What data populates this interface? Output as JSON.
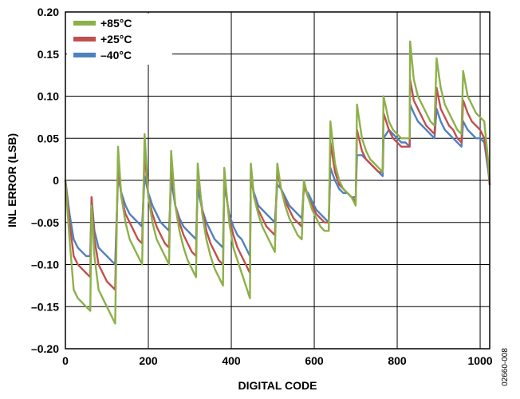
{
  "chart_data": {
    "type": "line",
    "xlabel": "DIGITAL CODE",
    "ylabel": "INL ERROR (LSB)",
    "xlim": [
      0,
      1023
    ],
    "ylim": [
      -0.2,
      0.2
    ],
    "x_ticks": [
      0,
      200,
      400,
      600,
      800,
      1000
    ],
    "x_tick_labels": [
      "0",
      "200",
      "400",
      "600",
      "800",
      "1000"
    ],
    "y_ticks": [
      -0.2,
      -0.15,
      -0.1,
      -0.05,
      0,
      0.05,
      0.1,
      0.15,
      0.2
    ],
    "y_tick_labels": [
      "–0.20",
      "–0.15",
      "–0.10",
      "–0.05",
      "0",
      "0.05",
      "0.10",
      "0.15",
      "0.20"
    ],
    "grid": true,
    "legend_position": "top-left",
    "figure_id": "02660-008",
    "x": [
      0,
      10,
      20,
      30,
      40,
      50,
      60,
      63,
      70,
      80,
      90,
      100,
      110,
      120,
      127,
      135,
      145,
      155,
      165,
      175,
      185,
      191,
      200,
      210,
      220,
      230,
      240,
      250,
      255,
      265,
      275,
      285,
      295,
      305,
      315,
      319,
      330,
      340,
      350,
      360,
      370,
      380,
      383,
      395,
      405,
      415,
      425,
      435,
      445,
      447,
      455,
      465,
      475,
      485,
      495,
      505,
      511,
      520,
      530,
      540,
      550,
      560,
      570,
      575,
      585,
      595,
      605,
      615,
      625,
      635,
      639,
      650,
      660,
      670,
      680,
      690,
      700,
      703,
      715,
      725,
      735,
      745,
      755,
      765,
      767,
      780,
      790,
      800,
      810,
      820,
      830,
      831,
      840,
      850,
      860,
      870,
      880,
      890,
      895,
      905,
      915,
      925,
      935,
      945,
      955,
      959,
      970,
      980,
      990,
      1000,
      1010,
      1020,
      1023
    ],
    "series": [
      {
        "name": "+85°C",
        "color": "#8db04a",
        "values": [
          0.0,
          -0.07,
          -0.13,
          -0.14,
          -0.145,
          -0.15,
          -0.155,
          -0.03,
          -0.09,
          -0.13,
          -0.14,
          -0.15,
          -0.16,
          -0.17,
          0.04,
          -0.02,
          -0.05,
          -0.07,
          -0.08,
          -0.09,
          -0.1,
          0.055,
          -0.02,
          -0.05,
          -0.07,
          -0.08,
          -0.09,
          -0.1,
          0.035,
          -0.03,
          -0.06,
          -0.08,
          -0.095,
          -0.105,
          -0.115,
          0.02,
          -0.04,
          -0.07,
          -0.09,
          -0.105,
          -0.115,
          -0.125,
          0.015,
          -0.05,
          -0.08,
          -0.095,
          -0.11,
          -0.125,
          -0.14,
          0.02,
          -0.02,
          -0.04,
          -0.055,
          -0.065,
          -0.075,
          -0.085,
          0.02,
          -0.01,
          -0.03,
          -0.045,
          -0.055,
          -0.065,
          -0.07,
          0.0,
          -0.02,
          -0.035,
          -0.045,
          -0.055,
          -0.06,
          -0.06,
          0.07,
          0.02,
          0.0,
          -0.01,
          -0.015,
          -0.02,
          -0.03,
          0.09,
          0.05,
          0.035,
          0.025,
          0.02,
          0.015,
          0.01,
          0.1,
          0.07,
          0.06,
          0.055,
          0.05,
          0.05,
          0.05,
          0.165,
          0.12,
          0.1,
          0.09,
          0.08,
          0.07,
          0.065,
          0.145,
          0.11,
          0.09,
          0.08,
          0.07,
          0.06,
          0.055,
          0.13,
          0.1,
          0.09,
          0.08,
          0.075,
          0.07,
          0.02,
          0.0
        ]
      },
      {
        "name": "+25°C",
        "color": "#c0504d",
        "values": [
          0.0,
          -0.05,
          -0.09,
          -0.1,
          -0.105,
          -0.11,
          -0.115,
          -0.02,
          -0.07,
          -0.1,
          -0.11,
          -0.12,
          -0.125,
          -0.13,
          0.02,
          -0.02,
          -0.04,
          -0.05,
          -0.06,
          -0.07,
          -0.075,
          0.035,
          -0.02,
          -0.04,
          -0.055,
          -0.065,
          -0.075,
          -0.08,
          0.02,
          -0.03,
          -0.05,
          -0.065,
          -0.075,
          -0.085,
          -0.09,
          0.01,
          -0.035,
          -0.06,
          -0.075,
          -0.085,
          -0.095,
          -0.1,
          0.005,
          -0.045,
          -0.065,
          -0.08,
          -0.09,
          -0.1,
          -0.11,
          0.01,
          -0.02,
          -0.035,
          -0.045,
          -0.055,
          -0.06,
          -0.065,
          0.01,
          -0.01,
          -0.025,
          -0.035,
          -0.045,
          -0.05,
          -0.055,
          -0.005,
          -0.02,
          -0.03,
          -0.04,
          -0.045,
          -0.05,
          -0.05,
          0.045,
          0.01,
          -0.005,
          -0.01,
          -0.015,
          -0.02,
          -0.025,
          0.06,
          0.035,
          0.025,
          0.02,
          0.015,
          0.01,
          0.01,
          0.08,
          0.06,
          0.05,
          0.045,
          0.04,
          0.04,
          0.04,
          0.12,
          0.095,
          0.085,
          0.075,
          0.065,
          0.06,
          0.055,
          0.11,
          0.085,
          0.075,
          0.065,
          0.06,
          0.05,
          0.045,
          0.095,
          0.08,
          0.07,
          0.065,
          0.06,
          0.05,
          0.015,
          -0.005
        ]
      },
      {
        "name": "–40°C",
        "color": "#4f81bd",
        "values": [
          0.0,
          -0.04,
          -0.07,
          -0.08,
          -0.085,
          -0.09,
          -0.09,
          -0.02,
          -0.06,
          -0.08,
          -0.085,
          -0.09,
          -0.095,
          -0.1,
          0.005,
          -0.015,
          -0.03,
          -0.04,
          -0.045,
          -0.05,
          -0.055,
          0.005,
          -0.015,
          -0.03,
          -0.04,
          -0.05,
          -0.055,
          -0.06,
          0.0,
          -0.03,
          -0.045,
          -0.055,
          -0.06,
          -0.065,
          -0.07,
          -0.01,
          -0.035,
          -0.05,
          -0.06,
          -0.07,
          -0.075,
          -0.08,
          -0.005,
          -0.04,
          -0.055,
          -0.065,
          -0.07,
          -0.08,
          -0.09,
          0.0,
          -0.015,
          -0.03,
          -0.035,
          -0.04,
          -0.045,
          -0.05,
          -0.005,
          -0.01,
          -0.02,
          -0.03,
          -0.035,
          -0.04,
          -0.045,
          -0.01,
          -0.015,
          -0.025,
          -0.035,
          -0.04,
          -0.045,
          -0.05,
          0.015,
          0.0,
          -0.01,
          -0.015,
          -0.015,
          -0.02,
          -0.02,
          0.03,
          0.03,
          0.025,
          0.02,
          0.015,
          0.01,
          0.005,
          0.05,
          0.06,
          0.055,
          0.05,
          0.045,
          0.045,
          0.04,
          0.09,
          0.08,
          0.07,
          0.065,
          0.06,
          0.055,
          0.05,
          0.085,
          0.07,
          0.06,
          0.055,
          0.05,
          0.045,
          0.04,
          0.07,
          0.06,
          0.055,
          0.05,
          0.05,
          0.045,
          0.01,
          -0.005
        ]
      }
    ]
  }
}
